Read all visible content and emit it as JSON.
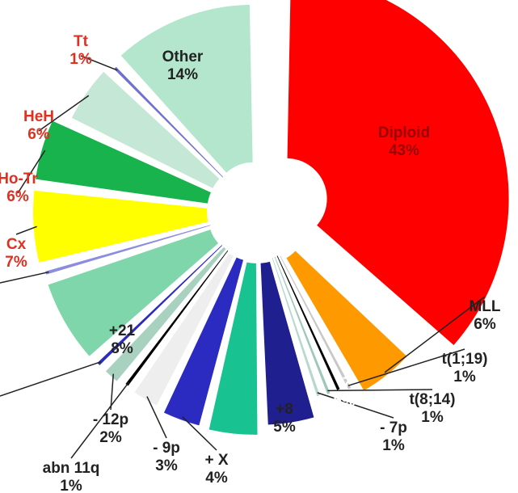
{
  "chart_data": {
    "type": "pie",
    "title": "",
    "slices": [
      {
        "label": "Diploid",
        "value_label": "43%",
        "value": 43,
        "color": "#ff0000",
        "label_color": "#990000"
      },
      {
        "label": "MLL",
        "value_label": "6%",
        "value": 6,
        "color": "#ff9900",
        "label_color": "#222222"
      },
      {
        "label": "t(1;19)",
        "value_label": "1%",
        "value": 1,
        "color": "#c8c8c8",
        "label_color": "#222222"
      },
      {
        "label": "",
        "value_label": "",
        "value": 1,
        "color": "#000000",
        "label_color": "#222222"
      },
      {
        "label": "t(8;14)",
        "value_label": "1%",
        "value": 1,
        "color": "#9ec9b5",
        "label_color": "#222222"
      },
      {
        "label": "- 7p",
        "value_label": "1%",
        "value": 1,
        "color": "#b6d9cb",
        "label_color": "#222222"
      },
      {
        "label": "-7",
        "value_label": "5%",
        "value": 5,
        "color": "#1f1f8f",
        "label_color": "#ffffff"
      },
      {
        "label": "+8",
        "value_label": "5%",
        "value": 5,
        "color": "#19c291",
        "label_color": "#222222"
      },
      {
        "label": "+ X",
        "value_label": "4%",
        "value": 4,
        "color": "#2b2bc2",
        "label_color": "#222222"
      },
      {
        "label": "- 9p",
        "value_label": "3%",
        "value": 3,
        "color": "#eeeeee",
        "label_color": "#222222"
      },
      {
        "label": "abn 11q",
        "value_label": "1%",
        "value": 1,
        "color": "#000000",
        "label_color": "#222222"
      },
      {
        "label": "- 12p",
        "value_label": "2%",
        "value": 2,
        "color": "#a8d2bf",
        "label_color": "#222222"
      },
      {
        "label": "",
        "value_label": "",
        "value": 1,
        "color": "#2b2bc2",
        "label_color": "#222222"
      },
      {
        "label": "+21",
        "value_label": "8%",
        "value": 8,
        "color": "#7fd6aa",
        "label_color": "#222222"
      },
      {
        "label": "",
        "value_label": "",
        "value": 1,
        "color": "#8c8ce0",
        "label_color": "#222222"
      },
      {
        "label": "Cx",
        "value_label": "7%",
        "value": 7,
        "color": "#ffff00",
        "label_color": "#e03020"
      },
      {
        "label": "Ho-Tr",
        "value_label": "6%",
        "value": 6,
        "color": "#19b34d",
        "label_color": "#e03020"
      },
      {
        "label": "HeH",
        "value_label": "6%",
        "value": 6,
        "color": "#c5e8d6",
        "label_color": "#e03020"
      },
      {
        "label": "Tt",
        "value_label": "1%",
        "value": 1,
        "color": "#7070d0",
        "label_color": "#e03020"
      },
      {
        "label": "Other",
        "value_label": "14%",
        "value": 14,
        "color": "#b3e6cc",
        "label_color": "#222222"
      }
    ]
  }
}
